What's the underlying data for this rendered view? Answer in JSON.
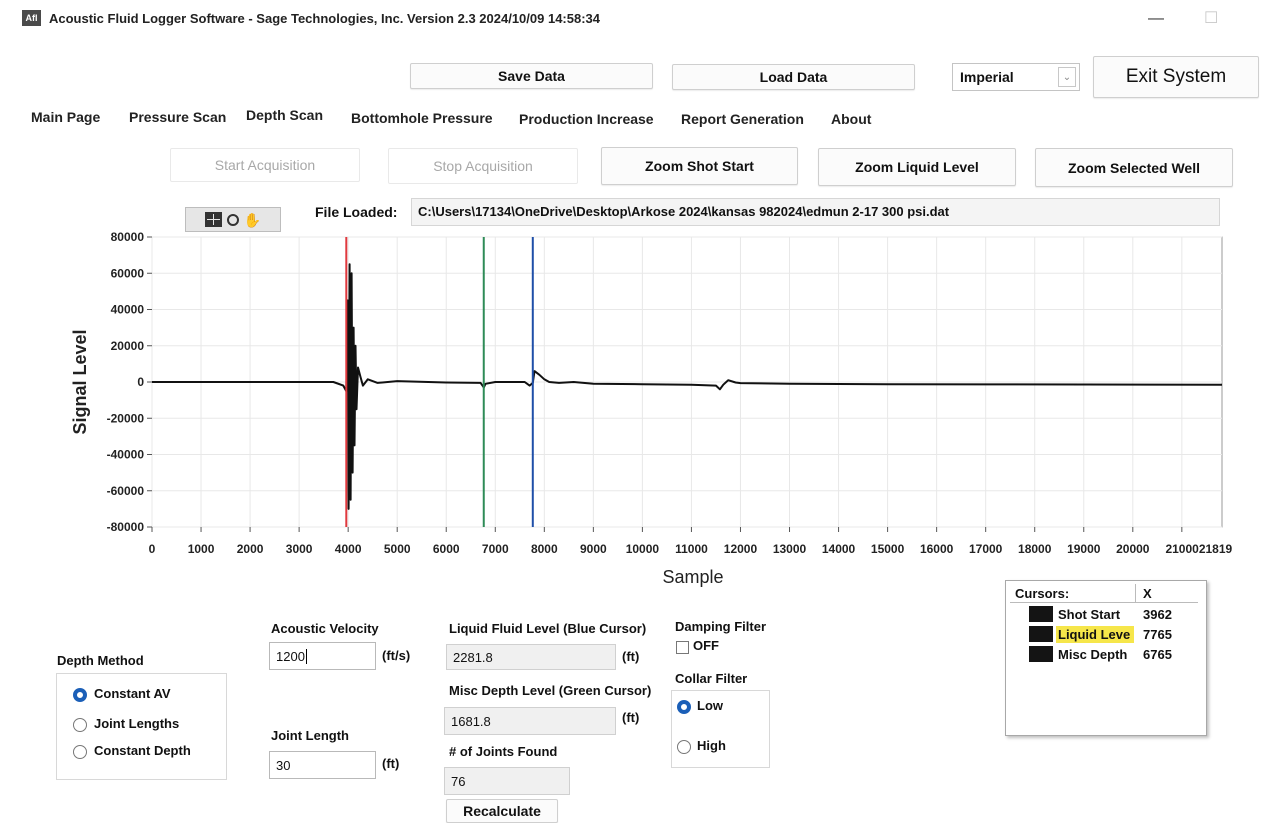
{
  "window": {
    "app_icon_text": "AfI",
    "title": "Acoustic Fluid Logger Software - Sage Technologies, Inc.  Version 2.3 2024/10/09 14:58:34",
    "minimize_symbol": "—",
    "maximize_symbol": "☐"
  },
  "toolbar": {
    "save_label": "Save Data",
    "load_label": "Load Data",
    "units_value": "Imperial",
    "exit_label": "Exit System"
  },
  "tabs": [
    {
      "label": "Main Page"
    },
    {
      "label": "Pressure Scan"
    },
    {
      "label": "Depth Scan"
    },
    {
      "label": "Bottomhole Pressure"
    },
    {
      "label": "Production Increase"
    },
    {
      "label": "Report Generation"
    },
    {
      "label": "About"
    }
  ],
  "actions": {
    "start_label": "Start Acquisition",
    "stop_label": "Stop Acquisition",
    "zoom_shot_label": "Zoom Shot Start",
    "zoom_liquid_label": "Zoom Liquid Level",
    "zoom_well_label": "Zoom Selected Well"
  },
  "file": {
    "label": "File Loaded:",
    "path": "C:\\Users\\17134\\OneDrive\\Desktop\\Arkose 2024\\kansas 982024\\edmun 2-17 300 psi.dat"
  },
  "chart_data": {
    "type": "line",
    "xlabel": "Sample",
    "ylabel": "Signal Level",
    "xlim": [
      0,
      21819
    ],
    "ylim": [
      -80000,
      80000
    ],
    "x_ticks": [
      "0",
      "1000",
      "2000",
      "3000",
      "4000",
      "5000",
      "6000",
      "7000",
      "8000",
      "9000",
      "10000",
      "11000",
      "12000",
      "13000",
      "14000",
      "15000",
      "16000",
      "17000",
      "18000",
      "19000",
      "20000",
      "2100021819"
    ],
    "x_tick_values": [
      0,
      1000,
      2000,
      3000,
      4000,
      5000,
      6000,
      7000,
      8000,
      9000,
      10000,
      11000,
      12000,
      13000,
      14000,
      15000,
      16000,
      17000,
      18000,
      19000,
      20000,
      21000
    ],
    "y_ticks": [
      80000,
      60000,
      40000,
      20000,
      0,
      -20000,
      -40000,
      -60000,
      -80000
    ],
    "grid": true,
    "series": [
      {
        "color": "#111111",
        "x": [
          0,
          3700,
          3900,
          3962,
          3990,
          4010,
          4030,
          4050,
          4070,
          4090,
          4110,
          4130,
          4150,
          4170,
          4200,
          4250,
          4300,
          4400,
          4600,
          5000,
          6000,
          6700,
          6765,
          6800,
          7000,
          7600,
          7700,
          7765,
          7800,
          7900,
          8000,
          8100,
          8300,
          8600,
          9000,
          10000,
          11000,
          11500,
          11580,
          11650,
          11750,
          11900,
          12000,
          13000,
          15000,
          17000,
          19000,
          21819
        ],
        "y": [
          0,
          0,
          -2000,
          -5000,
          45000,
          -70000,
          65000,
          -65000,
          60000,
          -50000,
          30000,
          -35000,
          20000,
          -15000,
          8000,
          3000,
          -2000,
          1500,
          -500,
          500,
          -300,
          -500,
          -3000,
          -1000,
          0,
          0,
          -2000,
          -500,
          6000,
          4000,
          1500,
          0,
          -500,
          0,
          -1000,
          -1200,
          -1500,
          -2000,
          -4000,
          -1500,
          1000,
          -300,
          -600,
          -1000,
          -1200,
          -1300,
          -1400,
          -1500
        ]
      }
    ],
    "cursors": [
      {
        "name": "Shot Start",
        "x": 3962,
        "color": "#e0393e"
      },
      {
        "name": "Misc Depth",
        "x": 6765,
        "color": "#2e8b57"
      },
      {
        "name": "Liquid Leve",
        "x": 7765,
        "color": "#1f4fa8"
      }
    ]
  },
  "cursor_table": {
    "header_name": "Cursors:",
    "header_x": "X",
    "rows": [
      {
        "name": "Shot Start",
        "x": "3962",
        "highlight": false
      },
      {
        "name": "Liquid Leve",
        "x": "7765",
        "highlight": true
      },
      {
        "name": "Misc Depth",
        "x": "6765",
        "highlight": false
      }
    ]
  },
  "depth_method": {
    "title": "Depth Method",
    "options": [
      {
        "label": "Constant AV",
        "selected": true
      },
      {
        "label": "Joint Lengths",
        "selected": false
      },
      {
        "label": "Constant Depth",
        "selected": false
      }
    ]
  },
  "acoustic_velocity": {
    "label": "Acoustic Velocity",
    "value": "1200",
    "unit": "(ft/s)"
  },
  "joint_length": {
    "label": "Joint Length",
    "value": "30",
    "unit": "(ft)"
  },
  "liquid_level": {
    "label": "Liquid Fluid Level (Blue Cursor)",
    "value": "2281.8",
    "unit": "(ft)"
  },
  "misc_depth": {
    "label": "Misc Depth Level (Green Cursor)",
    "value": "1681.8",
    "unit": "(ft)"
  },
  "joints_found": {
    "label": "# of Joints Found",
    "value": "76"
  },
  "recalculate_label": "Recalculate",
  "damping": {
    "title": "Damping Filter",
    "option": "OFF",
    "checked": false
  },
  "collar": {
    "title": "Collar Filter",
    "options": [
      {
        "label": "Low",
        "selected": true
      },
      {
        "label": "High",
        "selected": false
      }
    ]
  }
}
